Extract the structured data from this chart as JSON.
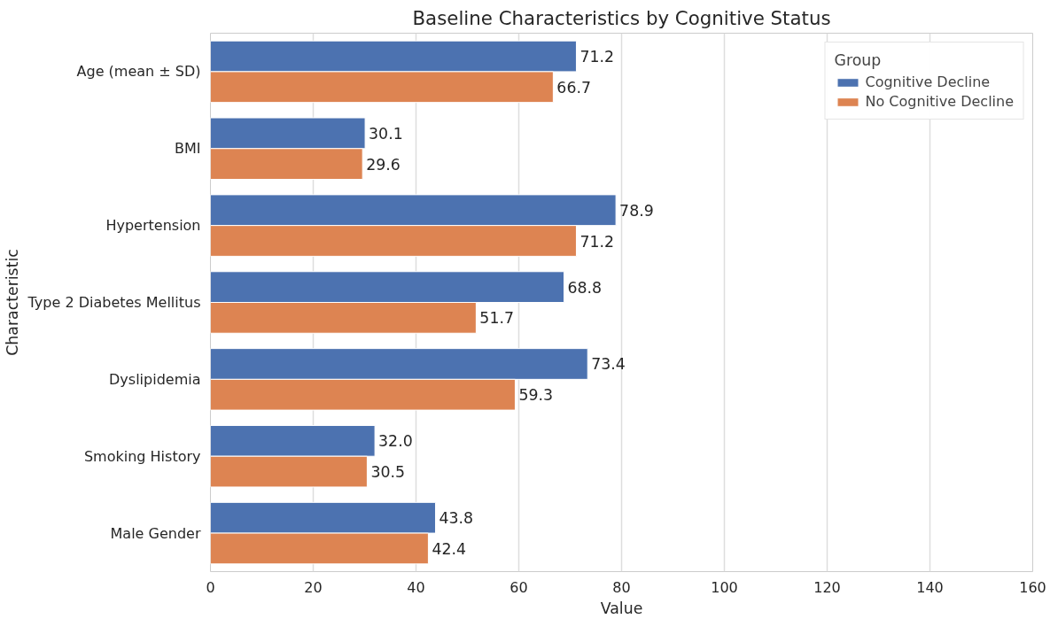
{
  "chart_data": {
    "type": "bar",
    "orientation": "horizontal",
    "title": "Baseline Characteristics by Cognitive Status",
    "xlabel": "Value",
    "ylabel": "Characteristic",
    "legend_title": "Group",
    "categories": [
      "Age (mean ± SD)",
      "BMI",
      "Hypertension",
      "Type 2 Diabetes Mellitus",
      "Dyslipidemia",
      "Smoking History",
      "Male Gender"
    ],
    "series": [
      {
        "name": "Cognitive Decline",
        "color": "#4c72b0",
        "values": [
          71.2,
          30.1,
          78.9,
          68.8,
          73.4,
          32.0,
          43.8
        ],
        "value_labels": [
          "71.2",
          "30.1",
          "78.9",
          "68.8",
          "73.4",
          "32.0",
          "43.8"
        ]
      },
      {
        "name": "No Cognitive Decline",
        "color": "#dd8452",
        "values": [
          66.7,
          29.6,
          71.2,
          51.7,
          59.3,
          30.5,
          42.4
        ],
        "value_labels": [
          "66.7",
          "29.6",
          "71.2",
          "51.7",
          "59.3",
          "30.5",
          "42.4"
        ]
      }
    ],
    "xlim": [
      0,
      160
    ],
    "xticks": [
      0,
      20,
      40,
      60,
      80,
      100,
      120,
      140,
      160
    ],
    "grid": "x",
    "legend": "top right"
  }
}
